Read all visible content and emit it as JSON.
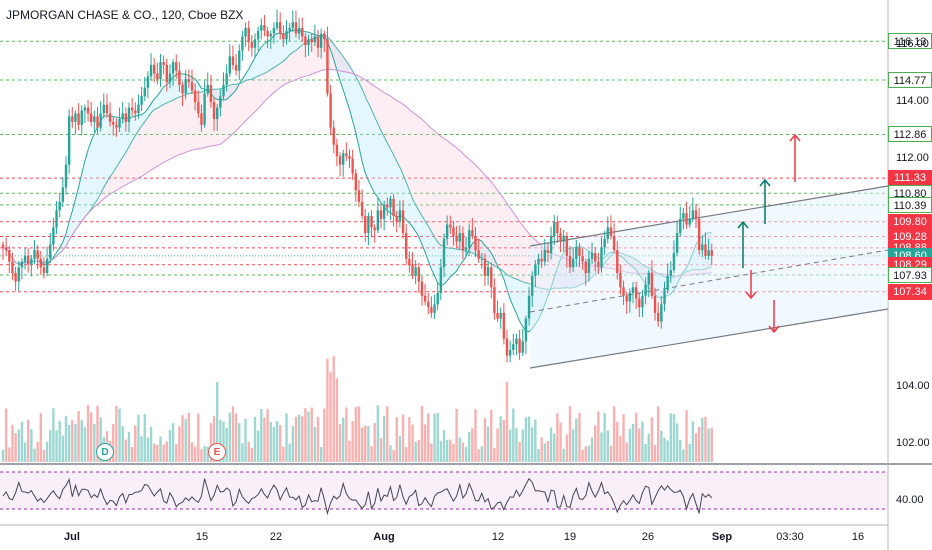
{
  "header": {
    "symbol_title": "JPMORGAN CHASE & CO., 120, Cboe BZX"
  },
  "price_axis": {
    "ticks": [
      "116.00",
      "114.00",
      "112.00",
      "104.00",
      "102.00"
    ],
    "tags": [
      {
        "label": "116.13",
        "kind": "green"
      },
      {
        "label": "114.77",
        "kind": "green"
      },
      {
        "label": "112.86",
        "kind": "green"
      },
      {
        "label": "111.33",
        "kind": "red"
      },
      {
        "label": "110.80",
        "kind": "green"
      },
      {
        "label": "110.39",
        "kind": "green"
      },
      {
        "label": "109.80",
        "kind": "red"
      },
      {
        "label": "109.28",
        "kind": "red"
      },
      {
        "label": "108.88",
        "kind": "red"
      },
      {
        "label": "108.60",
        "kind": "current"
      },
      {
        "label": "108.29",
        "kind": "red"
      },
      {
        "label": "107.93",
        "kind": "green"
      },
      {
        "label": "107.34",
        "kind": "red"
      }
    ]
  },
  "time_axis": {
    "ticks": [
      {
        "label": "Jul",
        "bold": true
      },
      {
        "label": "15",
        "bold": false
      },
      {
        "label": "22",
        "bold": false
      },
      {
        "label": "Aug",
        "bold": true
      },
      {
        "label": "12",
        "bold": false
      },
      {
        "label": "19",
        "bold": false
      },
      {
        "label": "26",
        "bold": false
      },
      {
        "label": "Sep",
        "bold": true
      },
      {
        "label": "03:30",
        "bold": false
      },
      {
        "label": "16",
        "bold": false
      }
    ]
  },
  "rsi_panel": {
    "tick": "40.00"
  },
  "events": {
    "dividend_label": "D",
    "earnings_label": "E"
  },
  "colors": {
    "up": "#26a69a",
    "down": "#ef5350",
    "support": "#4caf50",
    "resistance": "#f23645",
    "current_price": "#26a69a",
    "rsi_band": "#9c27b0",
    "channel": "#787b86",
    "arrow_up": "#00796b",
    "arrow_down": "#f23645"
  },
  "chart_data": {
    "type": "candlestick",
    "title": "JPMORGAN CHASE & CO., 120, Cboe BZX",
    "x_ticks": [
      "Jul",
      "15",
      "22",
      "Aug",
      "12",
      "19",
      "26",
      "Sep",
      "03:30",
      "16"
    ],
    "y_ticks": [
      116.0,
      114.0,
      112.0,
      104.0,
      102.0
    ],
    "last_price": 108.6,
    "support_levels": [
      116.13,
      114.77,
      112.86,
      110.8,
      110.39,
      107.93
    ],
    "resistance_levels": [
      111.33,
      109.8,
      109.28,
      108.88,
      108.29,
      107.34
    ],
    "closes": [
      108.9,
      108.8,
      108.4,
      108.0,
      107.7,
      108.2,
      108.4,
      108.6,
      108.3,
      108.5,
      108.8,
      108.5,
      108.2,
      108.0,
      108.5,
      109.0,
      109.6,
      110.2,
      110.5,
      111.0,
      111.8,
      113.5,
      113.3,
      113.6,
      113.2,
      113.7,
      113.8,
      113.6,
      113.3,
      113.5,
      113.1,
      113.6,
      113.9,
      113.6,
      113.3,
      113.2,
      113.1,
      113.4,
      113.6,
      113.3,
      113.8,
      113.7,
      113.6,
      113.9,
      114.2,
      114.5,
      114.9,
      115.3,
      115.0,
      114.8,
      115.4,
      115.3,
      114.7,
      115.0,
      115.4,
      115.1,
      114.6,
      114.3,
      114.8,
      114.7,
      114.4,
      114.0,
      113.6,
      113.2,
      114.3,
      114.6,
      114.0,
      113.4,
      113.8,
      114.2,
      114.6,
      115.0,
      115.6,
      115.3,
      115.1,
      115.8,
      116.3,
      116.6,
      116.1,
      115.9,
      116.2,
      116.5,
      116.7,
      116.5,
      116.3,
      116.4,
      116.6,
      116.8,
      116.4,
      116.2,
      116.5,
      116.6,
      116.8,
      116.4,
      116.6,
      116.3,
      116.0,
      116.2,
      116.1,
      116.3,
      115.9,
      116.4,
      116.2,
      114.3,
      113.1,
      112.5,
      112.1,
      111.8,
      112.2,
      112.1,
      112.0,
      111.5,
      110.9,
      110.5,
      110.0,
      109.4,
      110.0,
      109.6,
      109.5,
      110.2,
      109.9,
      110.4,
      110.3,
      110.6,
      110.0,
      109.8,
      110.2,
      109.4,
      108.5,
      108.3,
      107.9,
      108.2,
      107.7,
      107.2,
      107.0,
      106.8,
      106.6,
      106.9,
      107.3,
      108.2,
      109.2,
      109.7,
      109.6,
      109.3,
      109.1,
      109.4,
      108.8,
      108.9,
      109.5,
      109.3,
      108.8,
      108.5,
      108.5,
      107.9,
      108.2,
      107.5,
      106.6,
      106.4,
      106.6,
      105.7,
      105.1,
      105.3,
      105.5,
      105.7,
      105.2,
      105.6,
      106.4,
      107.2,
      107.9,
      108.3,
      108.5,
      108.4,
      108.8,
      108.7,
      109.3,
      109.8,
      109.4,
      109.1,
      109.3,
      108.6,
      108.2,
      108.5,
      108.9,
      108.6,
      108.4,
      108.0,
      108.5,
      108.7,
      108.4,
      108.2,
      108.9,
      109.2,
      109.6,
      109.3,
      108.8,
      108.0,
      107.5,
      107.2,
      107.0,
      107.3,
      107.5,
      107.1,
      106.8,
      107.2,
      107.6,
      108.0,
      107.2,
      106.6,
      106.3,
      106.9,
      107.4,
      107.9,
      108.1,
      108.7,
      109.4,
      109.9,
      110.1,
      109.7,
      109.9,
      110.2,
      109.9,
      108.8,
      109.0,
      108.6,
      108.8,
      108.6
    ]
  }
}
